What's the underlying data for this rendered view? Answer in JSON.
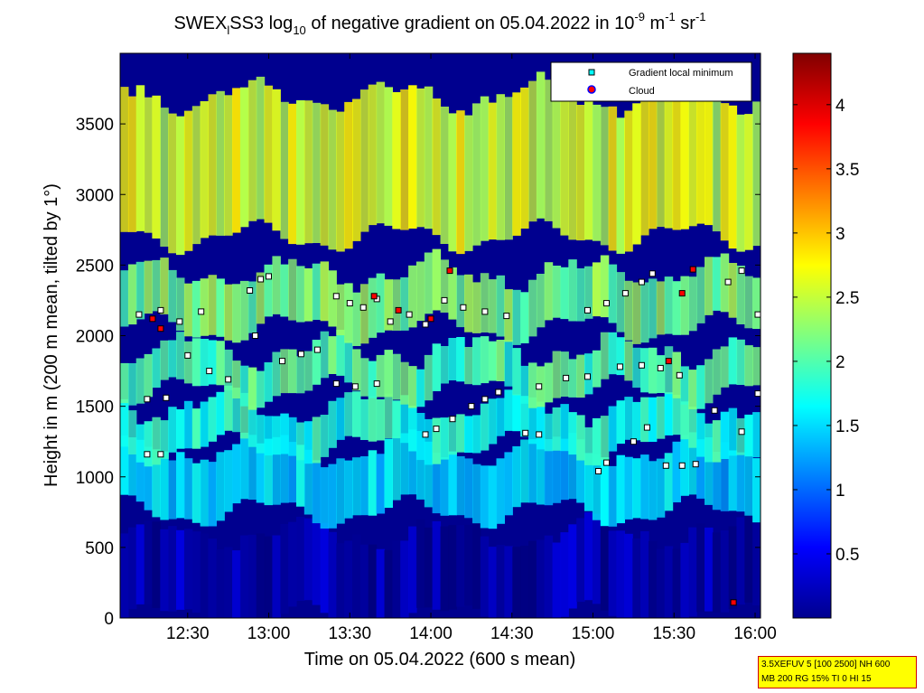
{
  "chart_data": {
    "type": "heatmap",
    "title_parts": {
      "a": "SWEX",
      "sub1": "l",
      "b": "SS3 log",
      "sub2": "10",
      "c": " of negative gradient on 05.04.2022 in 10",
      "sup1": "-9",
      "d": " m",
      "sup2": "-1",
      "e": " sr",
      "sup3": "-1"
    },
    "xlabel": "Time on 05.04.2022 (600 s mean)",
    "ylabel": "Height in m (200 m mean, tilted by 1°)",
    "x_range": [
      "12:05",
      "16:02"
    ],
    "ylim": [
      0,
      4000
    ],
    "x_ticks": [
      "12:30",
      "13:00",
      "13:30",
      "14:00",
      "14:30",
      "15:00",
      "15:30",
      "16:00"
    ],
    "y_ticks": [
      0,
      500,
      1000,
      1500,
      2000,
      2500,
      3000,
      3500
    ],
    "colorbar": {
      "colormap": "jet",
      "range": [
        0,
        4.4
      ],
      "ticks": [
        0.5,
        1,
        1.5,
        2,
        2.5,
        3,
        3.5,
        4
      ],
      "tick_labels": [
        "0.5",
        "1",
        "1.5",
        "2",
        "2.5",
        "3",
        "3.5",
        "4"
      ]
    },
    "legend": {
      "placement": "top-right",
      "entries": [
        {
          "label": "Gradient local minimum",
          "marker": "square",
          "color": "#00ffff"
        },
        {
          "label": "Cloud",
          "marker": "circle",
          "color": "#ff0000"
        }
      ]
    },
    "heatmap_layers": [
      {
        "name": "ground",
        "height_range": [
          0,
          600
        ],
        "value": 0.2
      },
      {
        "name": "lower-layer",
        "height_range": [
          750,
          1200
        ],
        "value": 1.5
      },
      {
        "name": "layer-1300",
        "height_range": [
          1200,
          1500
        ],
        "value": 1.8
      },
      {
        "name": "layer-1700",
        "height_range": [
          1600,
          1900
        ],
        "value": 2.0
      },
      {
        "name": "layer-2200",
        "height_range": [
          2050,
          2450
        ],
        "value": 2.2
      },
      {
        "name": "upper-layer",
        "height_range": [
          2700,
          3700
        ],
        "value": 2.6
      }
    ],
    "gradient_minimum_layers": [
      {
        "times": [
          "12:15",
          "12:20"
        ],
        "heights": [
          1160,
          1160
        ]
      },
      {
        "times": [
          "12:15",
          "12:22"
        ],
        "heights": [
          1550,
          1560
        ]
      },
      {
        "times": [
          "12:12",
          "12:20",
          "12:27",
          "12:35"
        ],
        "heights": [
          2150,
          2180,
          2100,
          2170
        ]
      },
      {
        "times": [
          "12:30",
          "12:38",
          "12:45",
          "12:55",
          "13:05",
          "13:12",
          "13:18"
        ],
        "heights": [
          1860,
          1750,
          1690,
          2000,
          1820,
          1870,
          1900
        ]
      },
      {
        "times": [
          "12:53",
          "12:57",
          "13:00"
        ],
        "heights": [
          2320,
          2400,
          2420
        ]
      },
      {
        "times": [
          "13:25",
          "13:30",
          "13:35",
          "13:40",
          "13:45",
          "13:52",
          "13:58"
        ],
        "heights": [
          2280,
          2230,
          2200,
          2260,
          2100,
          2150,
          2080
        ]
      },
      {
        "times": [
          "13:25",
          "13:32",
          "13:40"
        ],
        "heights": [
          1660,
          1640,
          1660
        ]
      },
      {
        "times": [
          "13:58",
          "14:02",
          "14:08",
          "14:15",
          "14:20",
          "14:25"
        ],
        "heights": [
          1300,
          1340,
          1410,
          1500,
          1550,
          1600
        ]
      },
      {
        "times": [
          "14:05",
          "14:12",
          "14:20",
          "14:28"
        ],
        "heights": [
          2250,
          2200,
          2170,
          2140
        ]
      },
      {
        "times": [
          "14:35",
          "14:40"
        ],
        "heights": [
          1310,
          1300
        ]
      },
      {
        "times": [
          "14:40",
          "14:50",
          "14:58"
        ],
        "heights": [
          1640,
          1700,
          1710
        ]
      },
      {
        "times": [
          "15:02",
          "15:05"
        ],
        "heights": [
          1040,
          1100
        ]
      },
      {
        "times": [
          "14:58",
          "15:05",
          "15:12",
          "15:18",
          "15:22"
        ],
        "heights": [
          2180,
          2230,
          2300,
          2380,
          2440
        ]
      },
      {
        "times": [
          "15:10",
          "15:18",
          "15:25",
          "15:32"
        ],
        "heights": [
          1780,
          1790,
          1770,
          1720
        ]
      },
      {
        "times": [
          "15:15",
          "15:20"
        ],
        "heights": [
          1250,
          1350
        ]
      },
      {
        "times": [
          "15:27",
          "15:33",
          "15:38"
        ],
        "heights": [
          1080,
          1080,
          1090
        ]
      },
      {
        "times": [
          "15:45",
          "15:55",
          "16:01"
        ],
        "heights": [
          1470,
          1320,
          1590
        ]
      },
      {
        "times": [
          "15:50",
          "15:55",
          "16:01"
        ],
        "heights": [
          2380,
          2460,
          2150
        ]
      }
    ],
    "cloud_points": [
      {
        "time": "12:17",
        "height": 2120
      },
      {
        "time": "12:20",
        "height": 2050
      },
      {
        "time": "13:39",
        "height": 2280
      },
      {
        "time": "13:48",
        "height": 2180
      },
      {
        "time": "14:00",
        "height": 2120
      },
      {
        "time": "14:07",
        "height": 2460
      },
      {
        "time": "15:28",
        "height": 1820
      },
      {
        "time": "15:33",
        "height": 2300
      },
      {
        "time": "15:37",
        "height": 2470
      },
      {
        "time": "15:52",
        "height": 110
      }
    ]
  },
  "info_box": {
    "line1": "3.5XEFUV 5 [100 2500] NH 600",
    "line2": "MB 200 RG 15% TI 0 HI 15"
  }
}
